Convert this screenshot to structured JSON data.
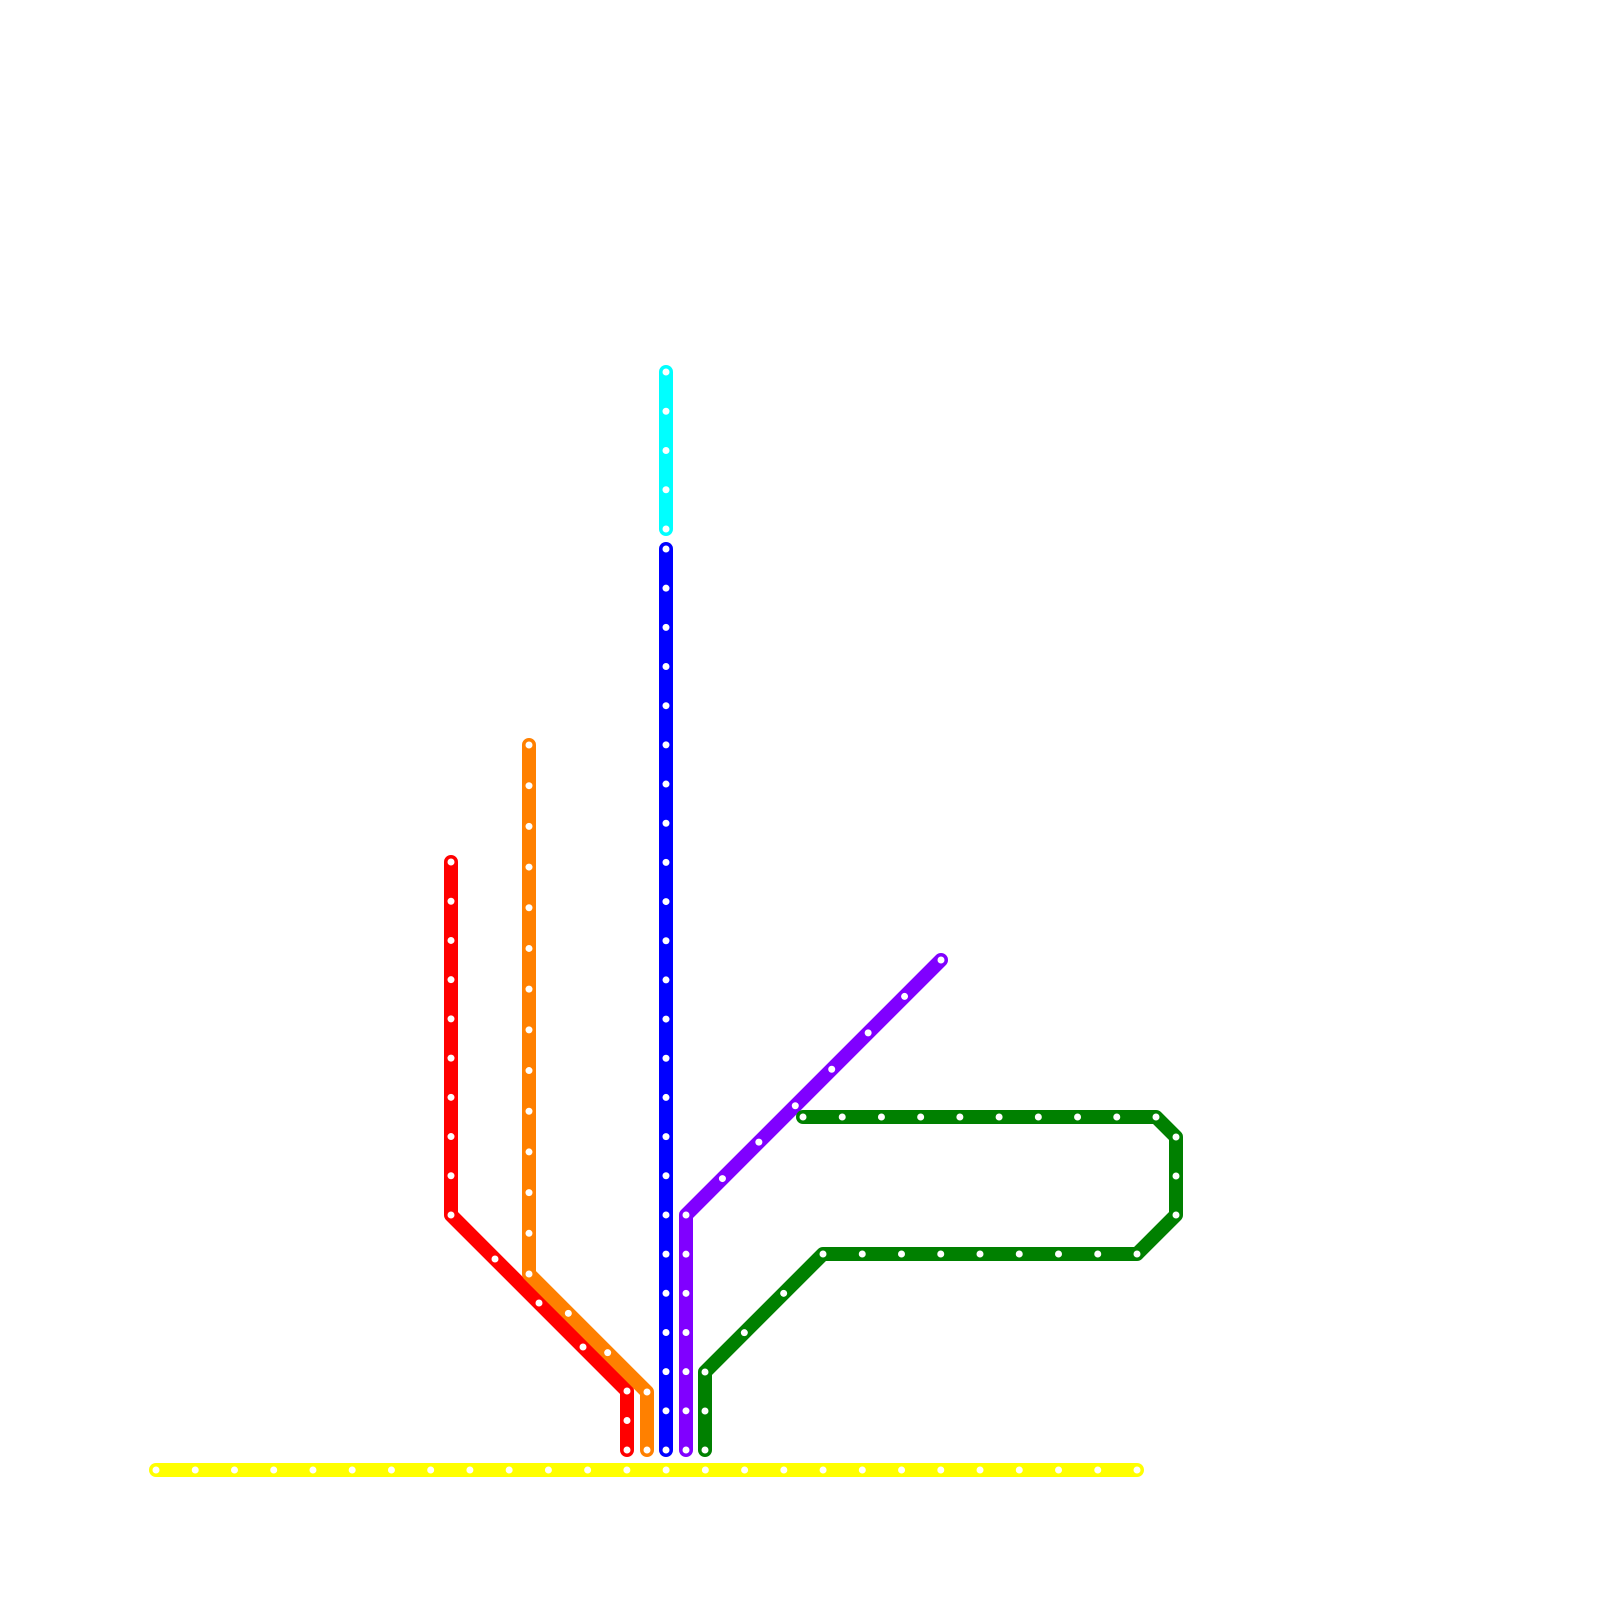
{
  "lines": [
    {
      "color": "#ffff00"
    },
    {
      "color": "#00ffff"
    },
    {
      "color": "#0000ff"
    },
    {
      "color": "#ff0000"
    },
    {
      "color": "#ff8000"
    },
    {
      "color": "#8000ff"
    },
    {
      "color": "#008000"
    }
  ]
}
